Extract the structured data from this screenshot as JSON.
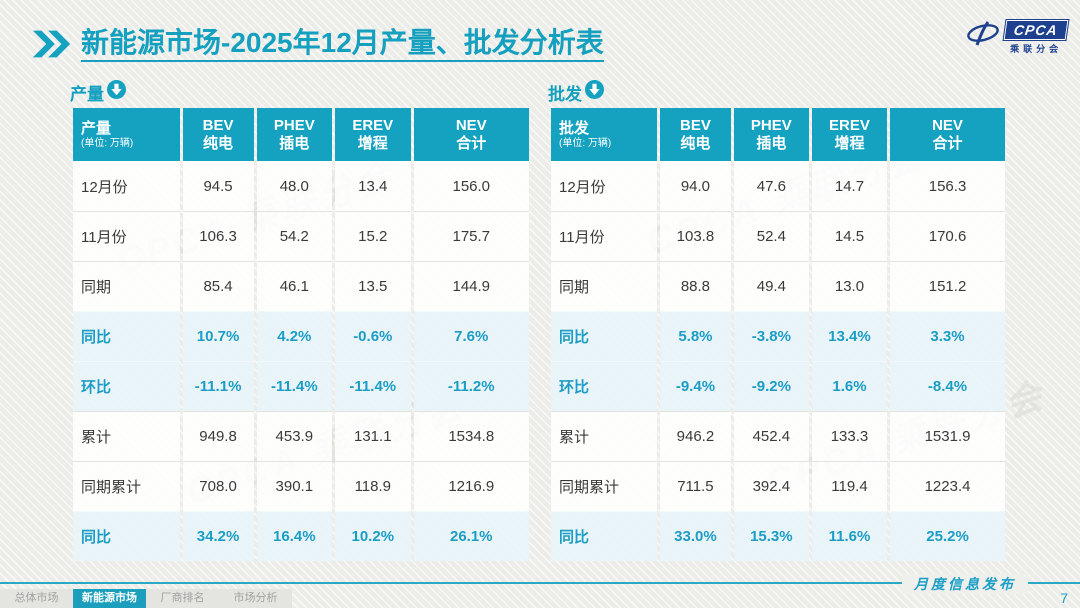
{
  "accent_color": "#14a2c0",
  "blue_logo_color": "#1e418f",
  "title": {
    "highlight": "新能源市场",
    "rest": "-2025年12月产量、批发分析表"
  },
  "logo": {
    "name": "CPCA",
    "subtitle": "乘联分会"
  },
  "watermark_text": "CPCA 乘联分会",
  "tables": [
    {
      "label": "产量",
      "unit": "(单位: 万辆)",
      "columns": [
        {
          "en": "BEV",
          "cn": "纯电"
        },
        {
          "en": "PHEV",
          "cn": "插电"
        },
        {
          "en": "EREV",
          "cn": "增程"
        },
        {
          "en": "NEV",
          "cn": "合计"
        }
      ],
      "rows": [
        {
          "label": "12月份",
          "type": "normal",
          "values": [
            "94.5",
            "48.0",
            "13.4",
            "156.0"
          ]
        },
        {
          "label": "11月份",
          "type": "normal",
          "values": [
            "106.3",
            "54.2",
            "15.2",
            "175.7"
          ]
        },
        {
          "label": "同期",
          "type": "normal",
          "values": [
            "85.4",
            "46.1",
            "13.5",
            "144.9"
          ]
        },
        {
          "label": "同比",
          "type": "percent",
          "values": [
            "10.7%",
            "4.2%",
            "-0.6%",
            "7.6%"
          ]
        },
        {
          "label": "环比",
          "type": "percent",
          "values": [
            "-11.1%",
            "-11.4%",
            "-11.4%",
            "-11.2%"
          ]
        },
        {
          "label": "累计",
          "type": "normal",
          "values": [
            "949.8",
            "453.9",
            "131.1",
            "1534.8"
          ]
        },
        {
          "label": "同期累计",
          "type": "normal",
          "values": [
            "708.0",
            "390.1",
            "118.9",
            "1216.9"
          ]
        },
        {
          "label": "同比",
          "type": "percent",
          "values": [
            "34.2%",
            "16.4%",
            "10.2%",
            "26.1%"
          ]
        }
      ]
    },
    {
      "label": "批发",
      "unit": "(单位: 万辆)",
      "columns": [
        {
          "en": "BEV",
          "cn": "纯电"
        },
        {
          "en": "PHEV",
          "cn": "插电"
        },
        {
          "en": "EREV",
          "cn": "增程"
        },
        {
          "en": "NEV",
          "cn": "合计"
        }
      ],
      "rows": [
        {
          "label": "12月份",
          "type": "normal",
          "values": [
            "94.0",
            "47.6",
            "14.7",
            "156.3"
          ]
        },
        {
          "label": "11月份",
          "type": "normal",
          "values": [
            "103.8",
            "52.4",
            "14.5",
            "170.6"
          ]
        },
        {
          "label": "同期",
          "type": "normal",
          "values": [
            "88.8",
            "49.4",
            "13.0",
            "151.2"
          ]
        },
        {
          "label": "同比",
          "type": "percent",
          "values": [
            "5.8%",
            "-3.8%",
            "13.4%",
            "3.3%"
          ]
        },
        {
          "label": "环比",
          "type": "percent",
          "values": [
            "-9.4%",
            "-9.2%",
            "1.6%",
            "-8.4%"
          ]
        },
        {
          "label": "累计",
          "type": "normal",
          "values": [
            "946.2",
            "452.4",
            "133.3",
            "1531.9"
          ]
        },
        {
          "label": "同期累计",
          "type": "normal",
          "values": [
            "711.5",
            "392.4",
            "119.4",
            "1223.4"
          ]
        },
        {
          "label": "同比",
          "type": "percent",
          "values": [
            "33.0%",
            "15.3%",
            "11.6%",
            "25.2%"
          ]
        }
      ]
    }
  ],
  "footer": {
    "tabs": [
      {
        "label": "总体市场",
        "active": false
      },
      {
        "label": "新能源市场",
        "active": true
      },
      {
        "label": "厂商排名",
        "active": false
      },
      {
        "label": "市场分析",
        "active": false
      }
    ],
    "publication": "月度信息发布",
    "page": "7"
  }
}
